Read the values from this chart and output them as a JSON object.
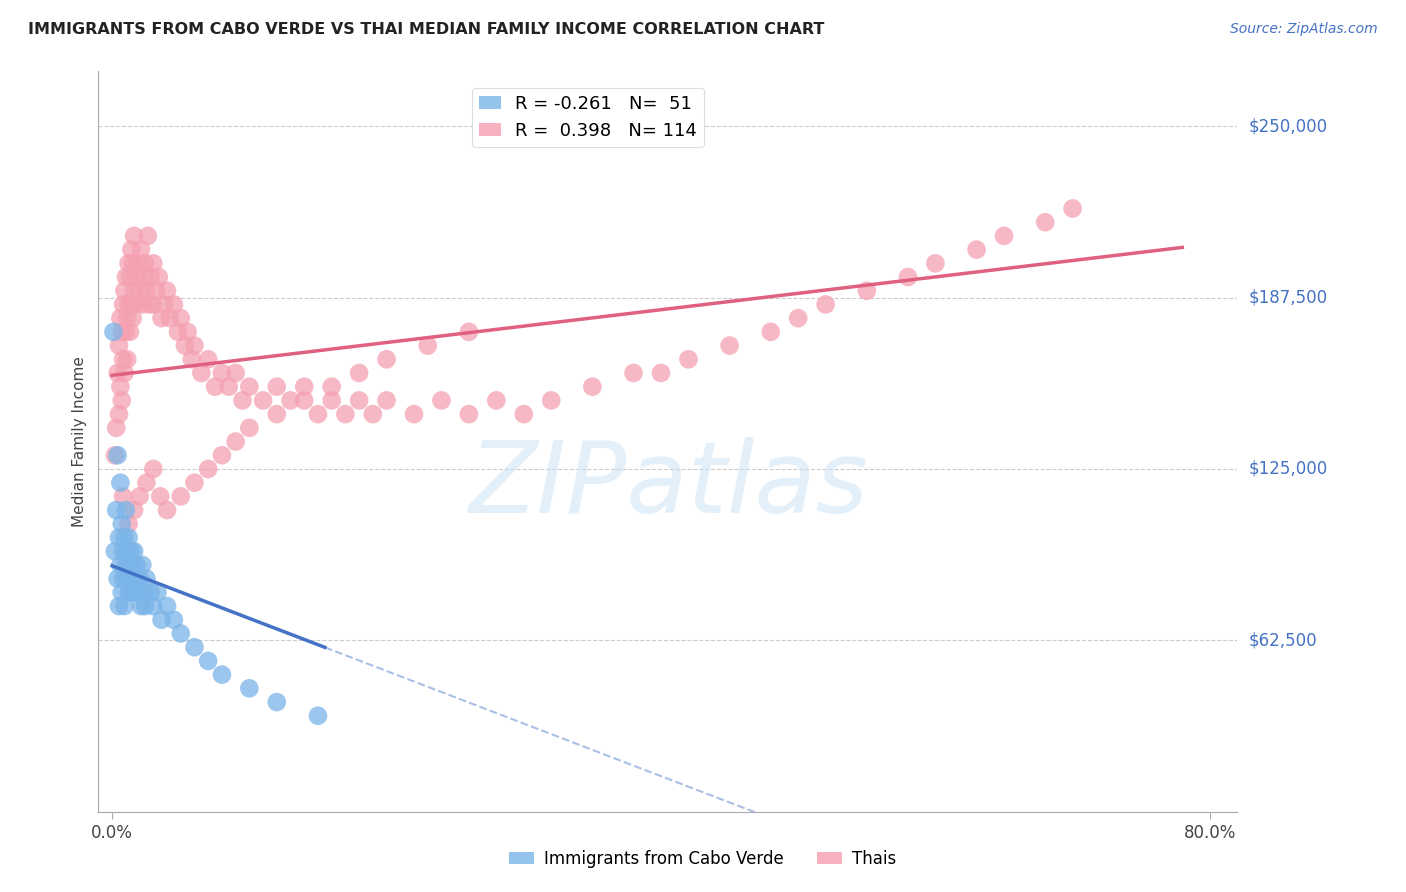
{
  "title": "IMMIGRANTS FROM CABO VERDE VS THAI MEDIAN FAMILY INCOME CORRELATION CHART",
  "source": "Source: ZipAtlas.com",
  "ylabel": "Median Family Income",
  "cabo_verde_R": -0.261,
  "cabo_verde_N": 51,
  "thai_R": 0.398,
  "thai_N": 114,
  "cabo_verde_color": "#7ab4e8",
  "thai_color": "#f4a0b0",
  "cabo_verde_line_color": "#4472c4",
  "thai_line_color": "#e06080",
  "background_color": "#ffffff",
  "grid_color": "#cccccc",
  "ytick_vals": [
    62500,
    125000,
    187500,
    250000
  ],
  "ytick_labels": [
    "$62,500",
    "$125,000",
    "$187,500",
    "$250,000"
  ],
  "cabo_verde_x": [
    0.002,
    0.003,
    0.004,
    0.004,
    0.005,
    0.005,
    0.006,
    0.006,
    0.007,
    0.007,
    0.008,
    0.008,
    0.009,
    0.009,
    0.01,
    0.01,
    0.011,
    0.011,
    0.012,
    0.012,
    0.013,
    0.013,
    0.014,
    0.014,
    0.015,
    0.015,
    0.016,
    0.016,
    0.017,
    0.018,
    0.019,
    0.02,
    0.021,
    0.022,
    0.023,
    0.024,
    0.025,
    0.028,
    0.03,
    0.033,
    0.036,
    0.04,
    0.045,
    0.05,
    0.06,
    0.07,
    0.08,
    0.1,
    0.12,
    0.15,
    0.001
  ],
  "cabo_verde_y": [
    95000,
    110000,
    85000,
    130000,
    75000,
    100000,
    90000,
    120000,
    80000,
    105000,
    95000,
    85000,
    100000,
    75000,
    90000,
    110000,
    85000,
    95000,
    80000,
    100000,
    90000,
    85000,
    95000,
    80000,
    85000,
    90000,
    80000,
    95000,
    85000,
    90000,
    80000,
    85000,
    75000,
    90000,
    80000,
    75000,
    85000,
    80000,
    75000,
    80000,
    70000,
    75000,
    70000,
    65000,
    60000,
    55000,
    50000,
    45000,
    40000,
    35000,
    175000
  ],
  "thai_x": [
    0.002,
    0.003,
    0.004,
    0.005,
    0.005,
    0.006,
    0.006,
    0.007,
    0.007,
    0.008,
    0.008,
    0.009,
    0.009,
    0.01,
    0.01,
    0.011,
    0.011,
    0.012,
    0.012,
    0.013,
    0.013,
    0.014,
    0.014,
    0.015,
    0.015,
    0.016,
    0.016,
    0.017,
    0.018,
    0.019,
    0.02,
    0.021,
    0.022,
    0.023,
    0.024,
    0.025,
    0.026,
    0.027,
    0.028,
    0.03,
    0.03,
    0.032,
    0.034,
    0.036,
    0.038,
    0.04,
    0.042,
    0.045,
    0.048,
    0.05,
    0.053,
    0.055,
    0.058,
    0.06,
    0.065,
    0.07,
    0.075,
    0.08,
    0.085,
    0.09,
    0.095,
    0.1,
    0.11,
    0.12,
    0.13,
    0.14,
    0.15,
    0.16,
    0.17,
    0.18,
    0.19,
    0.2,
    0.22,
    0.24,
    0.26,
    0.28,
    0.3,
    0.32,
    0.35,
    0.38,
    0.4,
    0.42,
    0.45,
    0.48,
    0.5,
    0.52,
    0.55,
    0.58,
    0.6,
    0.63,
    0.65,
    0.68,
    0.7,
    0.008,
    0.012,
    0.016,
    0.02,
    0.025,
    0.03,
    0.035,
    0.04,
    0.05,
    0.06,
    0.07,
    0.08,
    0.09,
    0.1,
    0.12,
    0.14,
    0.16,
    0.18,
    0.2,
    0.23,
    0.26
  ],
  "thai_y": [
    130000,
    140000,
    160000,
    145000,
    170000,
    155000,
    180000,
    150000,
    175000,
    165000,
    185000,
    160000,
    190000,
    175000,
    195000,
    180000,
    165000,
    185000,
    200000,
    175000,
    195000,
    185000,
    205000,
    180000,
    200000,
    190000,
    210000,
    185000,
    195000,
    200000,
    190000,
    205000,
    185000,
    195000,
    200000,
    190000,
    210000,
    185000,
    195000,
    200000,
    185000,
    190000,
    195000,
    180000,
    185000,
    190000,
    180000,
    185000,
    175000,
    180000,
    170000,
    175000,
    165000,
    170000,
    160000,
    165000,
    155000,
    160000,
    155000,
    160000,
    150000,
    155000,
    150000,
    155000,
    150000,
    155000,
    145000,
    150000,
    145000,
    150000,
    145000,
    150000,
    145000,
    150000,
    145000,
    150000,
    145000,
    150000,
    155000,
    160000,
    160000,
    165000,
    170000,
    175000,
    180000,
    185000,
    190000,
    195000,
    200000,
    205000,
    210000,
    215000,
    220000,
    115000,
    105000,
    110000,
    115000,
    120000,
    125000,
    115000,
    110000,
    115000,
    120000,
    125000,
    130000,
    135000,
    140000,
    145000,
    150000,
    155000,
    160000,
    165000,
    170000,
    175000
  ]
}
